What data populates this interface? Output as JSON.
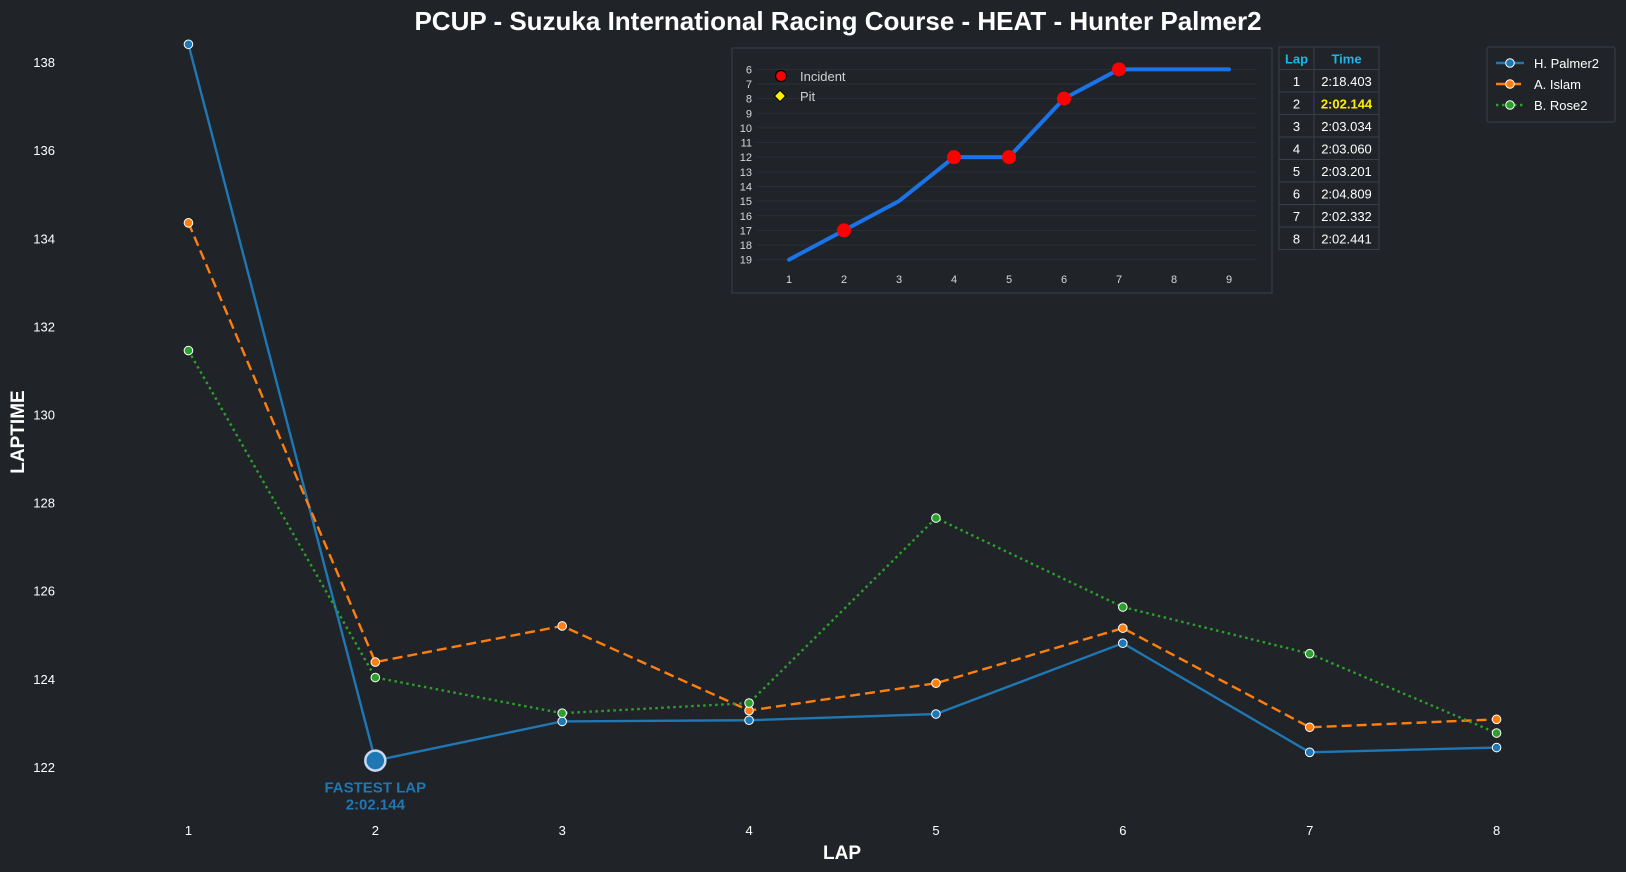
{
  "chart_data": {
    "type": "line",
    "title": "PCUP - Suzuka International Racing Course - HEAT - Hunter Palmer2",
    "xlabel": "LAP",
    "ylabel": "LAPTIME",
    "x": [
      1,
      2,
      3,
      4,
      5,
      6,
      7,
      8
    ],
    "xlim": [
      0.5,
      8.5
    ],
    "ylim": [
      121.0,
      138.5
    ],
    "y_ticks": [
      122,
      124,
      126,
      128,
      130,
      132,
      134,
      136,
      138
    ],
    "grid": false,
    "legend_position": "top-right",
    "series": [
      {
        "name": "H. Palmer2",
        "color": "#1f77b4",
        "style": "solid",
        "values": [
          138.403,
          122.144,
          123.034,
          123.06,
          123.201,
          124.809,
          122.332,
          122.441
        ]
      },
      {
        "name": "A. Islam",
        "color": "#ff7f0e",
        "style": "dashed",
        "values": [
          134.35,
          124.38,
          125.2,
          123.28,
          123.9,
          125.15,
          122.9,
          123.08
        ]
      },
      {
        "name": "B. Rose2",
        "color": "#2ca02c",
        "style": "dotted",
        "values": [
          131.45,
          124.03,
          123.22,
          123.45,
          127.65,
          125.63,
          124.57,
          122.77
        ]
      }
    ],
    "annotation": {
      "label": "FASTEST LAP",
      "value_text": "2:02.144",
      "lap": 2,
      "value": 122.144,
      "color": "#1f77b4"
    },
    "inset": {
      "type": "line",
      "x": [
        1,
        2,
        3,
        4,
        5,
        6,
        7,
        8,
        9
      ],
      "positions": [
        19,
        17,
        15,
        12,
        12,
        8,
        6,
        6,
        6
      ],
      "y_ticks": [
        6,
        7,
        8,
        9,
        10,
        11,
        12,
        13,
        14,
        15,
        16,
        17,
        18,
        19
      ],
      "ylim": [
        19.5,
        5.5
      ],
      "xlim": [
        0.2,
        9.6
      ],
      "line_color": "#1a73e8",
      "incident_laps": [
        2,
        4,
        5,
        6,
        7
      ],
      "pit_laps": [],
      "legend": [
        {
          "label": "Incident",
          "color": "#ff0000",
          "marker": "circle"
        },
        {
          "label": "Pit",
          "color": "#ffee00",
          "marker": "diamond"
        }
      ]
    },
    "lap_table": {
      "headers": [
        "Lap",
        "Time"
      ],
      "best_row": 2,
      "rows": [
        [
          "1",
          "2:18.403"
        ],
        [
          "2",
          "2:02.144"
        ],
        [
          "3",
          "2:03.034"
        ],
        [
          "4",
          "2:03.060"
        ],
        [
          "5",
          "2:03.201"
        ],
        [
          "6",
          "2:04.809"
        ],
        [
          "7",
          "2:02.332"
        ],
        [
          "8",
          "2:02.441"
        ]
      ]
    }
  }
}
